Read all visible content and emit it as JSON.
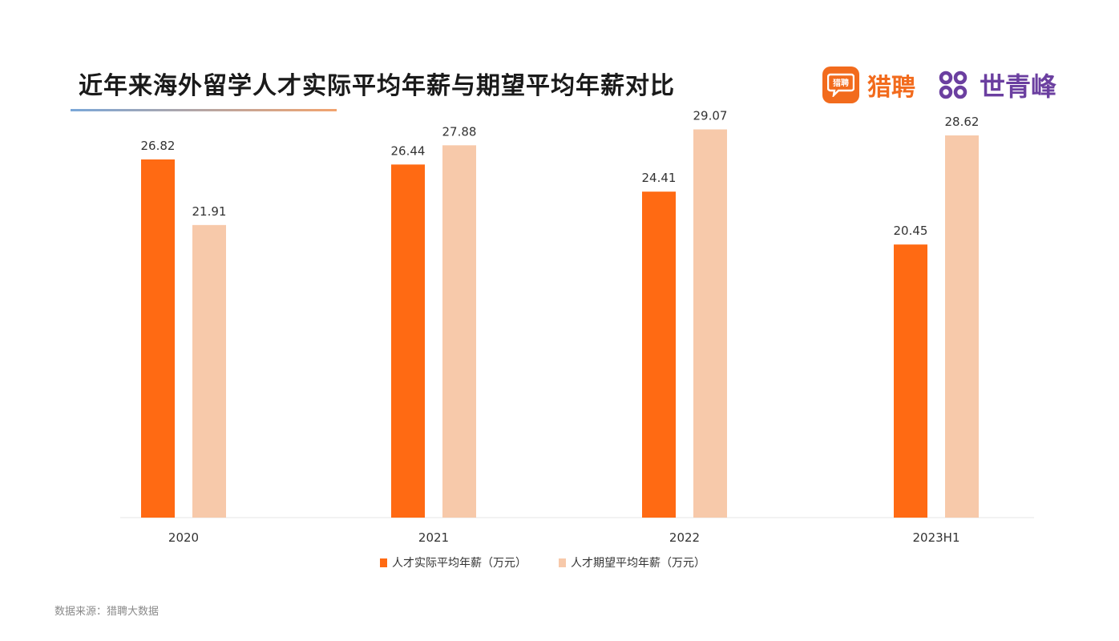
{
  "header": {
    "title": "近年来海外留学人才实际平均年薪与期望平均年薪对比"
  },
  "logos": {
    "liepin_icon": "liepin-logo-icon",
    "liepin_badge_text": "猎聘",
    "liepin_text": "猎聘",
    "liepin_color": "#f26b1d",
    "shiqingfeng_icon": "shiqingfeng-logo-icon",
    "shiqingfeng_text": "世青峰",
    "shiqingfeng_color": "#6b3fa0"
  },
  "chart_data": {
    "type": "bar",
    "title": "近年来海外留学人才实际平均年薪与期望平均年薪对比",
    "categories": [
      "2020",
      "2021",
      "2022",
      "2023H1"
    ],
    "series": [
      {
        "name": "人才实际平均年薪（万元）",
        "values": [
          26.82,
          26.44,
          24.41,
          20.45
        ],
        "color": "#ff6a13"
      },
      {
        "name": "人才期望平均年薪（万元）",
        "values": [
          21.91,
          27.88,
          29.07,
          28.62
        ],
        "color": "#f7c9aa"
      }
    ],
    "ylim": [
      0,
      30
    ],
    "grid": false,
    "legend_position": "bottom",
    "xlabel": "",
    "ylabel": ""
  },
  "footer": {
    "source": "数据来源：猎聘大数据"
  }
}
